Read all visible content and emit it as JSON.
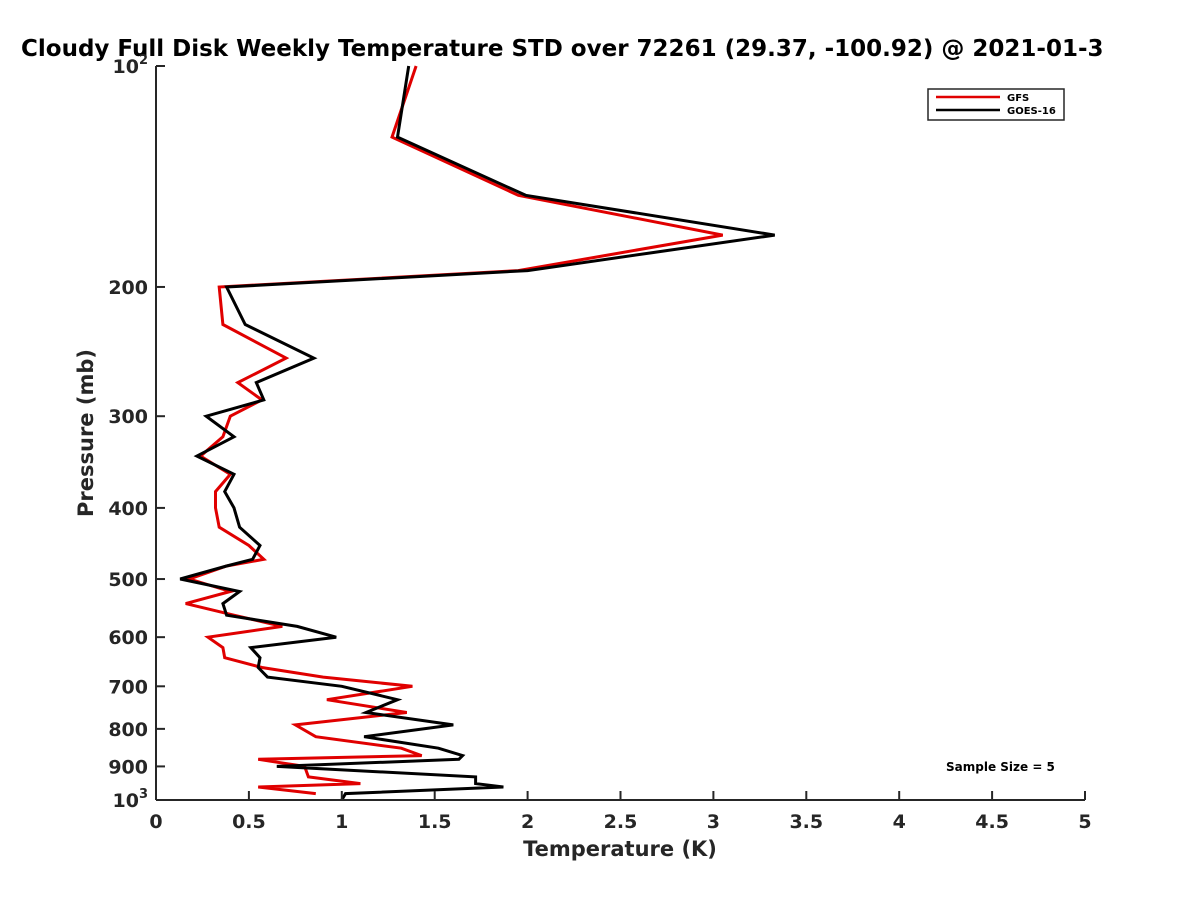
{
  "chart_data": {
    "type": "line",
    "orientation": "vertical-profile",
    "title": "Cloudy Full Disk Weekly Temperature STD over 72261 (29.37, -100.92) @ 2021-01-3",
    "xlabel": "Temperature (K)",
    "ylabel": "Pressure (mb)",
    "xlim": [
      0,
      5
    ],
    "ylim": [
      100,
      1000
    ],
    "y_scale": "log",
    "y_reversed": true,
    "grid": false,
    "legend_position": "top-right",
    "x_ticks": [
      "0",
      "0.5",
      "1",
      "1.5",
      "2",
      "2.5",
      "3",
      "3.5",
      "4",
      "4.5",
      "5"
    ],
    "x_tick_values": [
      0,
      0.5,
      1,
      1.5,
      2,
      2.5,
      3,
      3.5,
      4,
      4.5,
      5
    ],
    "y_ticks": [
      {
        "value": 100,
        "base": "10",
        "exp": "2",
        "label": ""
      },
      {
        "value": 200,
        "label": "200"
      },
      {
        "value": 300,
        "label": "300"
      },
      {
        "value": 400,
        "label": "400"
      },
      {
        "value": 500,
        "label": "500"
      },
      {
        "value": 600,
        "label": "600"
      },
      {
        "value": 700,
        "label": "700"
      },
      {
        "value": 800,
        "label": "800"
      },
      {
        "value": 900,
        "label": "900"
      },
      {
        "value": 1000,
        "base": "10",
        "exp": "3",
        "label": ""
      }
    ],
    "annotation": "Sample Size = 5",
    "series": [
      {
        "name": "GFS",
        "color": "#e00000",
        "points": [
          {
            "p": 100,
            "t": 1.4
          },
          {
            "p": 125,
            "t": 1.27
          },
          {
            "p": 150,
            "t": 1.95
          },
          {
            "p": 170,
            "t": 3.05
          },
          {
            "p": 190,
            "t": 1.95
          },
          {
            "p": 200,
            "t": 0.34
          },
          {
            "p": 225,
            "t": 0.36
          },
          {
            "p": 250,
            "t": 0.7
          },
          {
            "p": 270,
            "t": 0.44
          },
          {
            "p": 285,
            "t": 0.57
          },
          {
            "p": 300,
            "t": 0.4
          },
          {
            "p": 320,
            "t": 0.36
          },
          {
            "p": 340,
            "t": 0.24
          },
          {
            "p": 360,
            "t": 0.4
          },
          {
            "p": 380,
            "t": 0.32
          },
          {
            "p": 400,
            "t": 0.32
          },
          {
            "p": 425,
            "t": 0.34
          },
          {
            "p": 450,
            "t": 0.5
          },
          {
            "p": 470,
            "t": 0.58
          },
          {
            "p": 480,
            "t": 0.38
          },
          {
            "p": 500,
            "t": 0.18
          },
          {
            "p": 520,
            "t": 0.4
          },
          {
            "p": 540,
            "t": 0.16
          },
          {
            "p": 560,
            "t": 0.42
          },
          {
            "p": 580,
            "t": 0.68
          },
          {
            "p": 600,
            "t": 0.28
          },
          {
            "p": 620,
            "t": 0.36
          },
          {
            "p": 640,
            "t": 0.37
          },
          {
            "p": 660,
            "t": 0.57
          },
          {
            "p": 680,
            "t": 0.9
          },
          {
            "p": 700,
            "t": 1.38
          },
          {
            "p": 730,
            "t": 0.92
          },
          {
            "p": 760,
            "t": 1.35
          },
          {
            "p": 790,
            "t": 0.75
          },
          {
            "p": 820,
            "t": 0.86
          },
          {
            "p": 850,
            "t": 1.32
          },
          {
            "p": 870,
            "t": 1.43
          },
          {
            "p": 880,
            "t": 0.55
          },
          {
            "p": 900,
            "t": 0.8
          },
          {
            "p": 930,
            "t": 0.82
          },
          {
            "p": 950,
            "t": 1.1
          },
          {
            "p": 960,
            "t": 0.55
          },
          {
            "p": 980,
            "t": 0.86
          }
        ]
      },
      {
        "name": "GOES-16",
        "color": "#000000",
        "points": [
          {
            "p": 100,
            "t": 1.36
          },
          {
            "p": 125,
            "t": 1.3
          },
          {
            "p": 150,
            "t": 1.99
          },
          {
            "p": 170,
            "t": 3.33
          },
          {
            "p": 190,
            "t": 2.0
          },
          {
            "p": 200,
            "t": 0.38
          },
          {
            "p": 225,
            "t": 0.48
          },
          {
            "p": 250,
            "t": 0.85
          },
          {
            "p": 270,
            "t": 0.54
          },
          {
            "p": 285,
            "t": 0.58
          },
          {
            "p": 300,
            "t": 0.27
          },
          {
            "p": 320,
            "t": 0.42
          },
          {
            "p": 340,
            "t": 0.22
          },
          {
            "p": 360,
            "t": 0.42
          },
          {
            "p": 380,
            "t": 0.37
          },
          {
            "p": 400,
            "t": 0.42
          },
          {
            "p": 425,
            "t": 0.45
          },
          {
            "p": 450,
            "t": 0.56
          },
          {
            "p": 470,
            "t": 0.52
          },
          {
            "p": 480,
            "t": 0.38
          },
          {
            "p": 500,
            "t": 0.13
          },
          {
            "p": 520,
            "t": 0.45
          },
          {
            "p": 540,
            "t": 0.36
          },
          {
            "p": 560,
            "t": 0.38
          },
          {
            "p": 580,
            "t": 0.76
          },
          {
            "p": 600,
            "t": 0.97
          },
          {
            "p": 620,
            "t": 0.51
          },
          {
            "p": 640,
            "t": 0.56
          },
          {
            "p": 660,
            "t": 0.55
          },
          {
            "p": 680,
            "t": 0.6
          },
          {
            "p": 700,
            "t": 1.0
          },
          {
            "p": 730,
            "t": 1.3
          },
          {
            "p": 760,
            "t": 1.13
          },
          {
            "p": 790,
            "t": 1.6
          },
          {
            "p": 820,
            "t": 1.12
          },
          {
            "p": 850,
            "t": 1.52
          },
          {
            "p": 870,
            "t": 1.65
          },
          {
            "p": 880,
            "t": 1.63
          },
          {
            "p": 900,
            "t": 0.65
          },
          {
            "p": 930,
            "t": 1.72
          },
          {
            "p": 950,
            "t": 1.72
          },
          {
            "p": 960,
            "t": 1.87
          },
          {
            "p": 980,
            "t": 1.02
          },
          {
            "p": 1000,
            "t": 1.0
          }
        ]
      }
    ]
  }
}
